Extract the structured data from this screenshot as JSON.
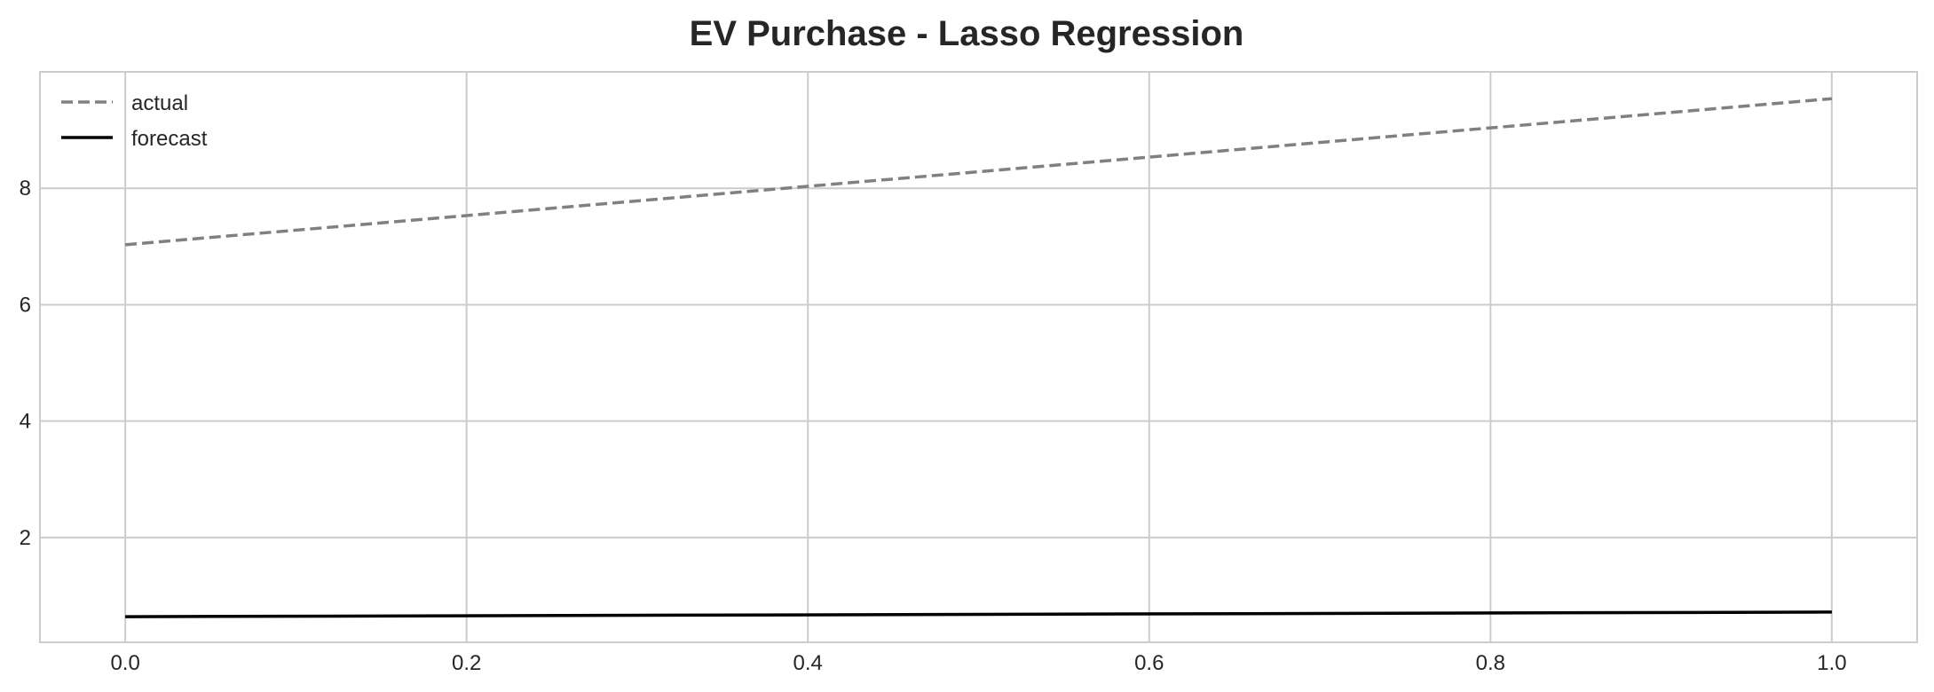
{
  "chart_data": {
    "type": "line",
    "title": "EV Purchase - Lasso Regression",
    "xlabel": "",
    "ylabel": "",
    "xlim": [
      -0.05,
      1.05
    ],
    "ylim": [
      0.2,
      10.0
    ],
    "xticks": [
      0.0,
      0.2,
      0.4,
      0.6,
      0.8,
      1.0
    ],
    "xtick_labels": [
      "0.0",
      "0.2",
      "0.4",
      "0.6",
      "0.8",
      "1.0"
    ],
    "yticks": [
      2,
      4,
      6,
      8
    ],
    "ytick_labels": [
      "2",
      "4",
      "6",
      "8"
    ],
    "grid": true,
    "legend": "top-left",
    "series": [
      {
        "name": "actual",
        "style": "dashed",
        "color": "#808080",
        "x": [
          0.0,
          1.0
        ],
        "y": [
          7.03,
          9.54
        ]
      },
      {
        "name": "forecast",
        "style": "solid",
        "color": "#000000",
        "x": [
          0.0,
          1.0
        ],
        "y": [
          0.64,
          0.72
        ]
      }
    ]
  }
}
